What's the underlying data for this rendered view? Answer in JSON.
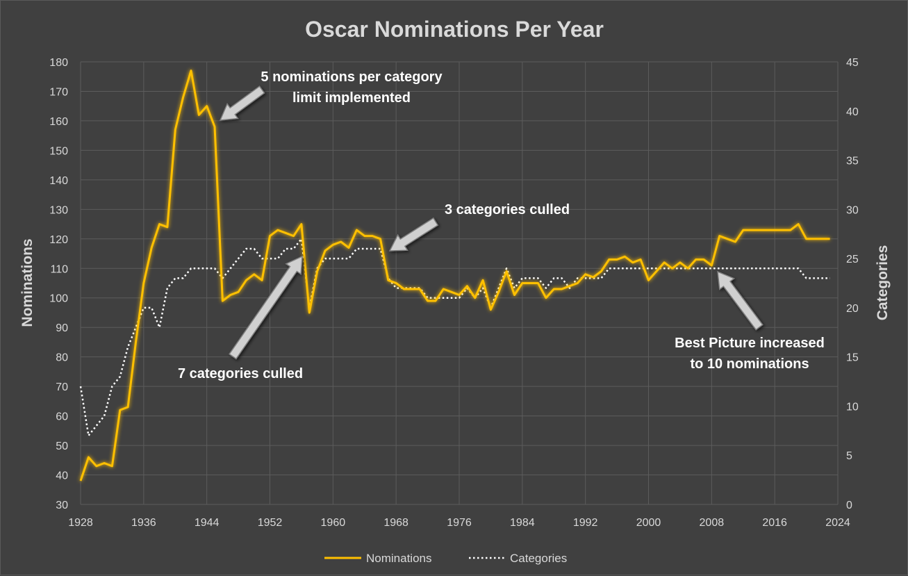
{
  "chart_data": {
    "type": "line",
    "title": "Oscar Nominations Per Year",
    "xlabel": "",
    "ylabel": "Nominations",
    "y2label": "Categories",
    "xlim": [
      1928,
      2024
    ],
    "ylim": [
      30,
      180
    ],
    "y2lim": [
      0,
      45
    ],
    "xticks": [
      1928,
      1936,
      1944,
      1952,
      1960,
      1968,
      1976,
      1984,
      1992,
      2000,
      2008,
      2016,
      2024
    ],
    "yticks": [
      30,
      40,
      50,
      60,
      70,
      80,
      90,
      100,
      110,
      120,
      130,
      140,
      150,
      160,
      170,
      180
    ],
    "y2ticks": [
      0,
      5,
      10,
      15,
      20,
      25,
      30,
      35,
      40,
      45
    ],
    "grid": true,
    "legend_position": "bottom",
    "colors": {
      "nominations": "#ffc000",
      "categories": "#ffffff"
    },
    "x": [
      1928,
      1929,
      1930,
      1931,
      1932,
      1933,
      1934,
      1935,
      1936,
      1937,
      1938,
      1939,
      1940,
      1941,
      1942,
      1943,
      1944,
      1945,
      1946,
      1947,
      1948,
      1949,
      1950,
      1951,
      1952,
      1953,
      1954,
      1955,
      1956,
      1957,
      1958,
      1959,
      1960,
      1961,
      1962,
      1963,
      1964,
      1965,
      1966,
      1967,
      1968,
      1969,
      1970,
      1971,
      1972,
      1973,
      1974,
      1975,
      1976,
      1977,
      1978,
      1979,
      1980,
      1981,
      1982,
      1983,
      1984,
      1985,
      1986,
      1987,
      1988,
      1989,
      1990,
      1991,
      1992,
      1993,
      1994,
      1995,
      1996,
      1997,
      1998,
      1999,
      2000,
      2001,
      2002,
      2003,
      2004,
      2005,
      2006,
      2007,
      2008,
      2009,
      2010,
      2011,
      2012,
      2013,
      2014,
      2015,
      2016,
      2017,
      2018,
      2019,
      2020,
      2021,
      2022,
      2023
    ],
    "series": [
      {
        "name": "Nominations",
        "axis": "left",
        "style": "solid",
        "values": [
          38,
          46,
          43,
          44,
          43,
          62,
          63,
          85,
          105,
          117,
          125,
          124,
          157,
          168,
          177,
          162,
          165,
          158,
          99,
          101,
          102,
          106,
          108,
          106,
          121,
          123,
          122,
          121,
          125,
          95,
          109,
          116,
          118,
          119,
          117,
          123,
          121,
          121,
          120,
          106,
          105,
          103,
          103,
          103,
          99,
          99,
          103,
          102,
          101,
          104,
          100,
          106,
          96,
          102,
          109,
          101,
          105,
          105,
          105,
          100,
          103,
          103,
          104,
          105,
          108,
          107,
          109,
          113,
          113,
          114,
          112,
          113,
          106,
          109,
          112,
          110,
          112,
          110,
          113,
          113,
          111,
          121,
          120,
          119,
          123,
          123,
          123,
          123,
          123,
          123,
          123,
          125,
          120,
          120,
          120,
          120
        ]
      },
      {
        "name": "Categories",
        "axis": "right",
        "style": "dotted",
        "values": [
          12,
          7,
          8,
          9,
          12,
          13,
          16,
          18,
          20,
          20,
          18,
          22,
          23,
          23,
          24,
          24,
          24,
          24,
          23,
          24,
          25,
          26,
          26,
          25,
          25,
          25,
          26,
          26,
          27,
          20,
          24,
          25,
          25,
          25,
          25,
          26,
          26,
          26,
          26,
          23,
          22,
          22,
          22,
          22,
          21,
          21,
          21,
          21,
          21,
          22,
          21,
          22,
          20,
          22,
          24,
          22,
          23,
          23,
          23,
          22,
          23,
          23,
          22,
          23,
          23,
          23,
          23,
          24,
          24,
          24,
          24,
          24,
          24,
          24,
          24,
          24,
          24,
          24,
          24,
          24,
          24,
          24,
          24,
          24,
          24,
          24,
          24,
          24,
          24,
          24,
          24,
          24,
          23,
          23,
          23,
          23
        ]
      }
    ],
    "annotations": [
      {
        "lines": [
          "5 nominations  per category",
          "limit implemented"
        ]
      },
      {
        "lines": [
          "3 categories culled"
        ]
      },
      {
        "lines": [
          "7 categories culled"
        ]
      },
      {
        "lines": [
          "Best Picture increased",
          "to 10 nominations"
        ]
      }
    ]
  }
}
